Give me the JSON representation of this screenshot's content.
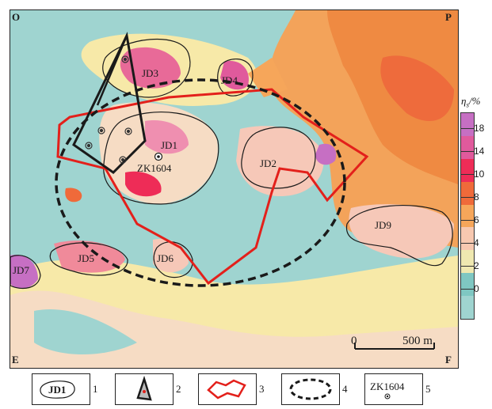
{
  "corners": {
    "top_left": "O",
    "top_right": "P",
    "bottom_left": "E",
    "bottom_right": "F"
  },
  "anomaly_labels": [
    "JD1",
    "JD2",
    "JD3",
    "JD4",
    "JD5",
    "JD6",
    "JD7",
    "JD9"
  ],
  "borehole": {
    "label": "ZK1604"
  },
  "colorbar": {
    "title": "η",
    "title_sub": "s",
    "title_unit": "/%",
    "ticks": [
      "18",
      "14",
      "10",
      "8",
      "6",
      "4",
      "2",
      "0"
    ],
    "colors": [
      "#c66fc3",
      "#e05a9c",
      "#ee2c57",
      "#ef6a3a",
      "#f6a65a",
      "#f7c8b0",
      "#efe8b0",
      "#7fc7c2",
      "#9fd4d0"
    ]
  },
  "scale": {
    "start": "0",
    "end": "500 m"
  },
  "legend": {
    "items": [
      {
        "number": "1",
        "symbol_text": "JD1",
        "symbol": "anomaly-contour"
      },
      {
        "number": "2",
        "symbol": "black-polygon"
      },
      {
        "number": "3",
        "symbol": "red-polygon"
      },
      {
        "number": "4",
        "symbol": "dashed-ellipse"
      },
      {
        "number": "5",
        "symbol_text": "ZK1604",
        "symbol": "borehole"
      }
    ]
  },
  "colors": {
    "background_low": "#9fd4d0",
    "medium": "#f7e9a8",
    "high_orange": "#f3a35a",
    "red_outline": "#e3201b",
    "black_outline": "#1a1a1a"
  }
}
